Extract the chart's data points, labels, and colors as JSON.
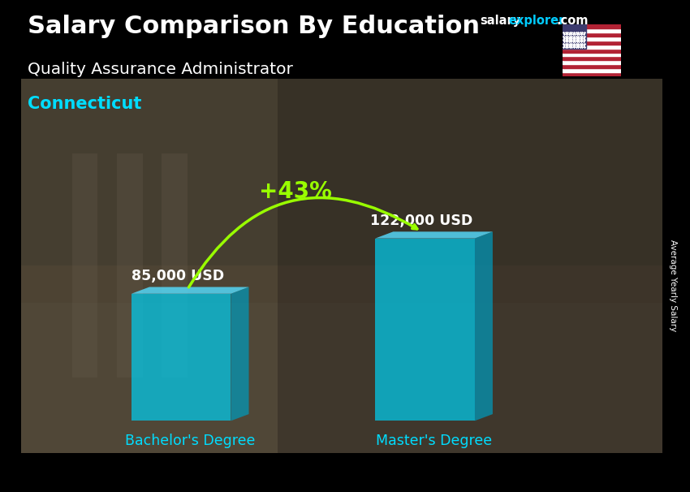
{
  "title_main": "Salary Comparison By Education",
  "brand_salary": "salary",
  "brand_explorer": "explorer",
  "brand_domain": ".com",
  "subtitle": "Quality Assurance Administrator",
  "location": "Connecticut",
  "categories": [
    "Bachelor's Degree",
    "Master's Degree"
  ],
  "values": [
    85000,
    122000
  ],
  "value_labels": [
    "85,000 USD",
    "122,000 USD"
  ],
  "pct_change": "+43%",
  "bar_face_color": "#00ccee",
  "bar_side_color": "#0099bb",
  "bar_top_color": "#55ddff",
  "bar_alpha": 0.72,
  "ylabel": "Average Yearly Salary",
  "bg_color_top": "#3a3020",
  "bg_color_mid": "#4a4035",
  "bg_color_bot": "#2a2520",
  "title_color": "#ffffff",
  "subtitle_color": "#ffffff",
  "location_color": "#00ddff",
  "value_label_color": "#ffffff",
  "xlabel_color": "#00ddff",
  "pct_color": "#99ff00",
  "arrow_color": "#99ff00",
  "ylabel_color": "#ffffff",
  "brand_salary_color": "#ffffff",
  "brand_explorer_color": "#00ccff"
}
